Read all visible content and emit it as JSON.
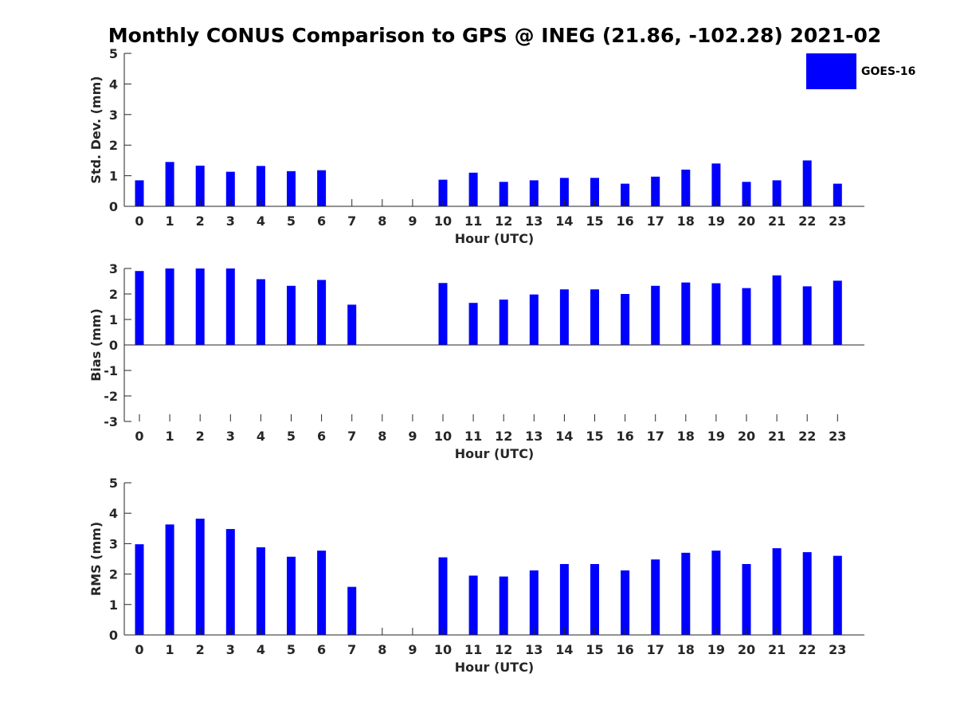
{
  "title": "Monthly CONUS Comparison to GPS @ INEG (21.86, -102.28) 2021-02",
  "colors": {
    "bar": "#0000ff",
    "axis": "#262626",
    "background": "#ffffff"
  },
  "chart_data": [
    {
      "type": "bar",
      "title": "Monthly CONUS Comparison to GPS @ INEG (21.86, -102.28) 2021-02",
      "xlabel": "Hour (UTC)",
      "ylabel": "Std. Dev. (mm)",
      "ylim": [
        0,
        5
      ],
      "yticks": [
        0,
        1,
        2,
        3,
        4,
        5
      ],
      "categories": [
        "0",
        "1",
        "2",
        "3",
        "4",
        "5",
        "6",
        "7",
        "8",
        "9",
        "10",
        "11",
        "12",
        "13",
        "14",
        "15",
        "16",
        "17",
        "18",
        "19",
        "20",
        "21",
        "22",
        "23"
      ],
      "series": [
        {
          "name": "GOES-16",
          "values": [
            0.85,
            1.45,
            1.33,
            1.13,
            1.32,
            1.15,
            1.18,
            null,
            null,
            null,
            0.87,
            1.1,
            0.8,
            0.85,
            0.93,
            0.93,
            0.74,
            0.97,
            1.2,
            1.4,
            0.8,
            0.85,
            1.5,
            0.74
          ]
        }
      ],
      "legend": "top-right",
      "grid": false
    },
    {
      "type": "bar",
      "xlabel": "Hour (UTC)",
      "ylabel": "Bias (mm)",
      "ylim": [
        -3,
        3
      ],
      "yticks": [
        -3,
        -2,
        -1,
        0,
        1,
        2,
        3
      ],
      "categories": [
        "0",
        "1",
        "2",
        "3",
        "4",
        "5",
        "6",
        "7",
        "8",
        "9",
        "10",
        "11",
        "12",
        "13",
        "14",
        "15",
        "16",
        "17",
        "18",
        "19",
        "20",
        "21",
        "22",
        "23"
      ],
      "series": [
        {
          "name": "GOES-16",
          "values": [
            2.9,
            3.0,
            3.0,
            3.0,
            2.58,
            2.32,
            2.55,
            1.58,
            null,
            null,
            2.43,
            1.65,
            1.78,
            1.98,
            2.18,
            2.18,
            2.0,
            2.32,
            2.45,
            2.42,
            2.23,
            2.73,
            2.3,
            2.52
          ]
        }
      ],
      "grid": false
    },
    {
      "type": "bar",
      "xlabel": "Hour (UTC)",
      "ylabel": "RMS (mm)",
      "ylim": [
        0,
        5
      ],
      "yticks": [
        0,
        1,
        2,
        3,
        4,
        5
      ],
      "categories": [
        "0",
        "1",
        "2",
        "3",
        "4",
        "5",
        "6",
        "7",
        "8",
        "9",
        "10",
        "11",
        "12",
        "13",
        "14",
        "15",
        "16",
        "17",
        "18",
        "19",
        "20",
        "21",
        "22",
        "23"
      ],
      "series": [
        {
          "name": "GOES-16",
          "values": [
            2.98,
            3.63,
            3.82,
            3.48,
            2.88,
            2.57,
            2.77,
            1.58,
            null,
            null,
            2.55,
            1.95,
            1.92,
            2.12,
            2.33,
            2.33,
            2.12,
            2.48,
            2.7,
            2.77,
            2.33,
            2.85,
            2.72,
            2.6
          ]
        }
      ],
      "grid": false
    }
  ],
  "legend": {
    "label": "GOES-16"
  }
}
